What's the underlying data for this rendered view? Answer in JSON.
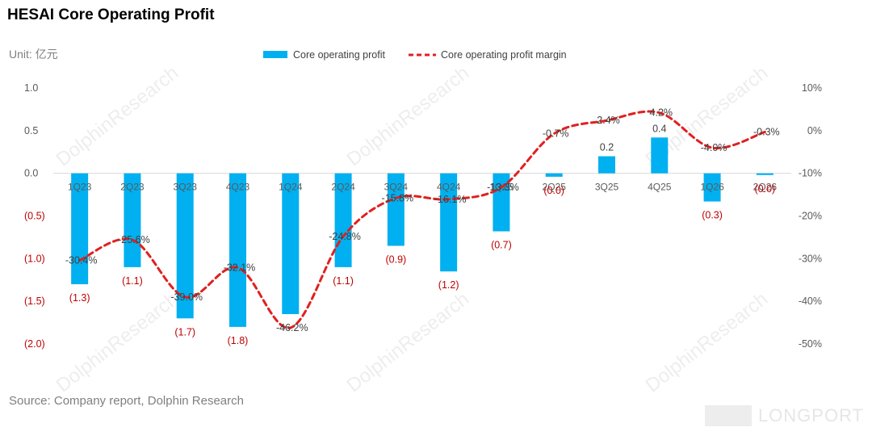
{
  "page": {
    "title": "HESAI Core Operating Profit",
    "unit": "Unit: 亿元",
    "source": "Source: Company report, Dolphin Research",
    "watermark": "DolphinResearch",
    "brand": "LONGPORT"
  },
  "chart_data": {
    "type": "bar",
    "title": "HESAI Core Operating Profit",
    "categories": [
      "1Q23",
      "2Q23",
      "3Q23",
      "4Q23",
      "1Q24",
      "2Q24",
      "3Q24",
      "4Q24",
      "1Q25",
      "2Q25",
      "3Q25",
      "4Q25",
      "1Q26",
      "2Q26"
    ],
    "series": [
      {
        "name": "Core operating profit",
        "type": "bar",
        "axis": "left",
        "color": "#00b0f0",
        "values": [
          -1.3,
          -1.1,
          -1.7,
          -1.8,
          -1.65,
          -1.1,
          -0.85,
          -1.15,
          -0.68,
          -0.04,
          0.2,
          0.42,
          -0.33,
          -0.02
        ],
        "labels": [
          "(1.3)",
          "(1.1)",
          "(1.7)",
          "(1.8)",
          "",
          "(1.1)",
          "(0.9)",
          "(1.2)",
          "(0.7)",
          "(0.0)",
          "0.2",
          "0.4",
          "(0.3)",
          "(0.0)"
        ]
      },
      {
        "name": "Core operating profit margin",
        "type": "line",
        "axis": "right",
        "color": "#e02020",
        "style": "dashed",
        "values": [
          -30.4,
          -25.6,
          -39.0,
          -32.1,
          -46.2,
          -24.8,
          -15.8,
          -16.1,
          -13.3,
          -0.7,
          2.4,
          4.2,
          -4.0,
          -0.3
        ],
        "labels": [
          "-30.4%",
          "-25.6%",
          "-39.0%",
          "-32.1%",
          "-46.2%",
          "-24.8%",
          "-15.8%",
          "-16.1%",
          "-13.3%",
          "-0.7%",
          "2.4%",
          "4.2%",
          "-4.0%",
          "-0.3%"
        ]
      }
    ],
    "y_left": {
      "range": [
        -2.0,
        1.0
      ],
      "ticks": [
        1.0,
        0.5,
        0.0,
        -0.5,
        -1.0,
        -1.5,
        -2.0
      ],
      "tick_labels": [
        "1.0",
        "0.5",
        "0.0",
        "(0.5)",
        "(1.0)",
        "(1.5)",
        "(2.0)"
      ],
      "negative_label_color": "#c00000"
    },
    "y_right": {
      "range": [
        -50,
        10
      ],
      "ticks": [
        10,
        0,
        -10,
        -20,
        -30,
        -40,
        -50
      ],
      "tick_labels": [
        "10%",
        "0%",
        "-10%",
        "-20%",
        "-30%",
        "-40%",
        "-50%"
      ]
    },
    "legend": {
      "placement": "top-center"
    },
    "grid": false,
    "colors": {
      "bar": "#00b0f0",
      "line": "#e02020",
      "negative_label": "#c00000",
      "axis_text": "#595959"
    }
  }
}
